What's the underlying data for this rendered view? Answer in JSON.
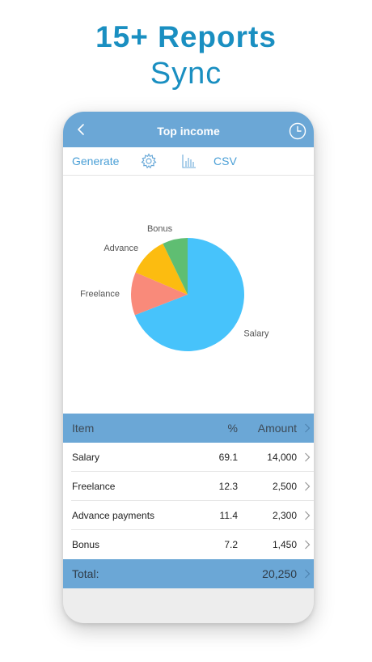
{
  "promo": {
    "title": "15+ Reports",
    "subtitle": "Sync"
  },
  "header": {
    "title": "Top income",
    "back_icon": "chevron-left-icon",
    "history_icon": "clock-icon"
  },
  "toolbar": {
    "generate_label": "Generate",
    "settings_icon": "gear-icon",
    "chart_icon": "bar-chart-icon",
    "csv_label": "CSV"
  },
  "chart_data": {
    "type": "pie",
    "categories": [
      "Salary",
      "Freelance",
      "Advance",
      "Bonus"
    ],
    "values": [
      69.1,
      12.3,
      11.4,
      7.2
    ],
    "colors": [
      "#47c3fb",
      "#f98a7a",
      "#fcbc10",
      "#5fbe72"
    ]
  },
  "table": {
    "headers": {
      "item": "Item",
      "percent": "%",
      "amount": "Amount"
    },
    "rows": [
      {
        "item": "Salary",
        "percent": "69.1",
        "amount": "14,000"
      },
      {
        "item": "Freelance",
        "percent": "12.3",
        "amount": "2,500"
      },
      {
        "item": "Advance payments",
        "percent": "11.4",
        "amount": "2,300"
      },
      {
        "item": "Bonus",
        "percent": "7.2",
        "amount": "1,450"
      }
    ],
    "total": {
      "label": "Total:",
      "amount": "20,250"
    }
  },
  "colors": {
    "accent": "#6ba7d6",
    "promo_text": "#1a8fc1",
    "link": "#4a9fd6"
  }
}
